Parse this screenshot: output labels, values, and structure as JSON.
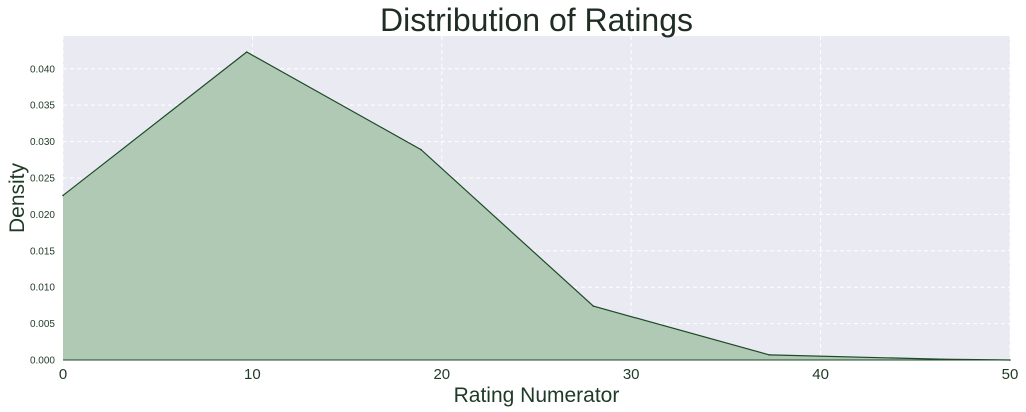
{
  "chart_data": {
    "type": "area",
    "title": "Distribution of Ratings",
    "xlabel": "Rating Numerator",
    "ylabel": "Density",
    "xlim": [
      0,
      50
    ],
    "ylim": [
      0,
      0.0445
    ],
    "xticks": [
      0,
      10,
      20,
      30,
      40,
      50
    ],
    "xtick_labels": [
      "0",
      "10",
      "20",
      "30",
      "40",
      "50"
    ],
    "yticks": [
      0.0,
      0.005,
      0.01,
      0.015,
      0.02,
      0.025,
      0.03,
      0.035,
      0.04
    ],
    "ytick_labels": [
      "0.000",
      "0.005",
      "0.010",
      "0.015",
      "0.020",
      "0.025",
      "0.030",
      "0.035",
      "0.040"
    ],
    "grid": true,
    "series": [
      {
        "x": [
          0,
          9.7,
          18.9,
          28.0,
          37.3,
          46.5,
          50
        ],
        "y": [
          0.0226,
          0.0423,
          0.0289,
          0.0074,
          0.0007,
          0.0001,
          0.0
        ]
      }
    ],
    "colors": {
      "background": "#eaeaf2",
      "fill": "#b0c9b4",
      "line": "#1e4a28",
      "grid": "#ffffff"
    }
  }
}
